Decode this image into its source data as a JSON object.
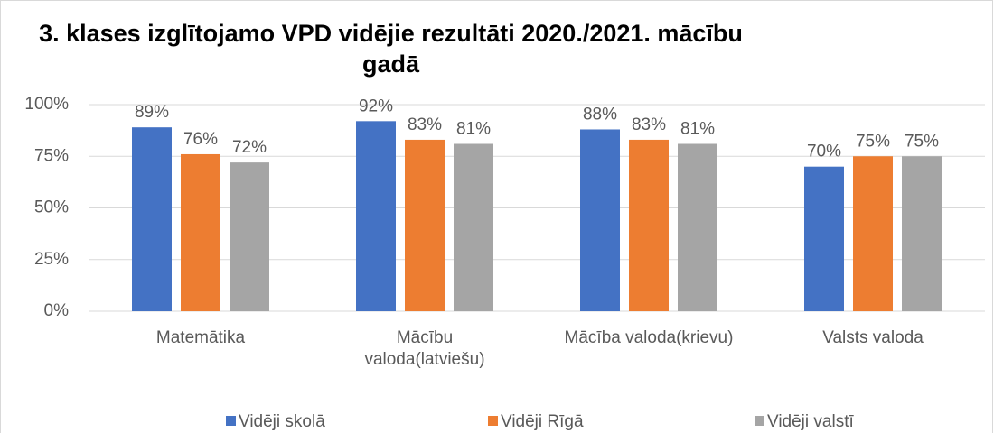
{
  "chart_data": {
    "type": "bar",
    "title": "3. klases izglītojamo VPD vidējie rezultāti 2020./2021. mācību gadā",
    "categories": [
      "Matemātika",
      "Mācību valoda(latviešu)",
      "Mācība valoda(krievu)",
      "Valsts valoda"
    ],
    "series": [
      {
        "name": "Vidēji skolā",
        "color": "#4472c4",
        "values": [
          89,
          92,
          88,
          70
        ],
        "value_labels": [
          "89%",
          "92%",
          "88%",
          "70%"
        ]
      },
      {
        "name": "Vidēji Rīgā",
        "color": "#ed7d31",
        "values": [
          76,
          83,
          83,
          75
        ],
        "value_labels": [
          "76%",
          "83%",
          "83%",
          "75%"
        ]
      },
      {
        "name": "Vidēji valstī",
        "color": "#a5a5a5",
        "values": [
          72,
          81,
          81,
          75
        ],
        "value_labels": [
          "72%",
          "81%",
          "81%",
          "75%"
        ]
      }
    ],
    "ylim": [
      0,
      100
    ],
    "yticks": [
      {
        "value": 0,
        "label": "0%"
      },
      {
        "value": 25,
        "label": "25%"
      },
      {
        "value": 50,
        "label": "50%"
      },
      {
        "value": 75,
        "label": "75%"
      },
      {
        "value": 100,
        "label": "100%"
      }
    ],
    "grid": true,
    "legend": "bottom"
  }
}
